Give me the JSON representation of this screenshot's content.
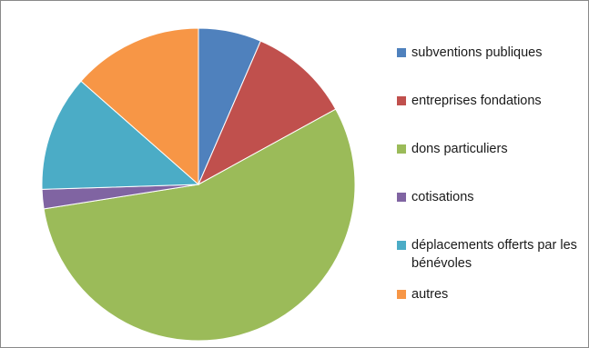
{
  "chart_data": {
    "type": "pie",
    "categories": [
      "subventions publiques",
      "entreprises fondations",
      "dons particuliers",
      "cotisations",
      "déplacements offerts par les bénévoles",
      "autres"
    ],
    "values": [
      6.5,
      10.5,
      55.5,
      2.0,
      12.0,
      13.5
    ],
    "unit": "",
    "colors": [
      "#4f81bd",
      "#c0504d",
      "#9bbb59",
      "#8064a2",
      "#4bacc6",
      "#f79646"
    ],
    "legend_position": "right",
    "start_angle": "top",
    "direction": "clockwise",
    "title": ""
  }
}
